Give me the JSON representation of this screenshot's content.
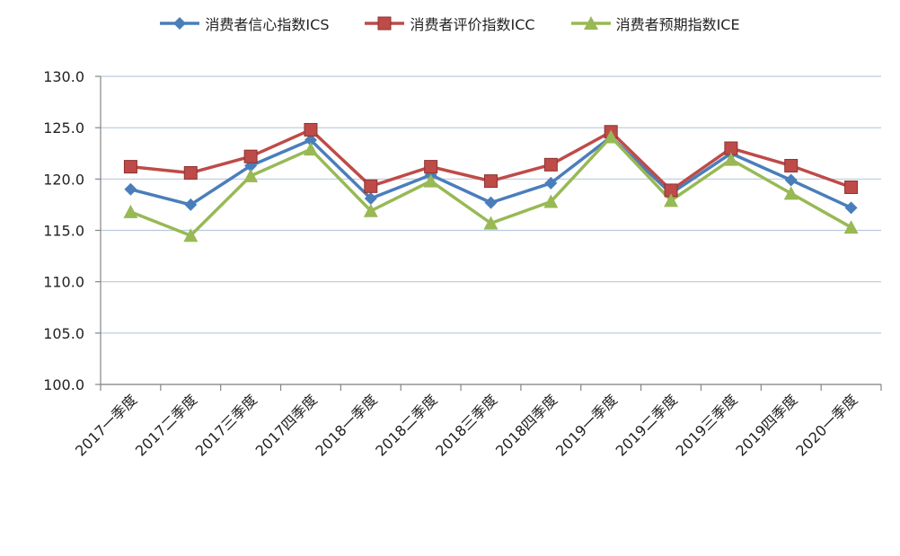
{
  "chart_data": {
    "type": "line",
    "title": "",
    "xlabel": "",
    "ylabel": "",
    "ylim": [
      100,
      130
    ],
    "y_ticks": [
      "100.0",
      "105.0",
      "110.0",
      "115.0",
      "120.0",
      "125.0",
      "130.0"
    ],
    "grid": true,
    "legend_position": "top",
    "categories": [
      "2017一季度",
      "2017二季度",
      "2017三季度",
      "2017四季度",
      "2018一季度",
      "2018二季度",
      "2018三季度",
      "2018四季度",
      "2019一季度",
      "2019二季度",
      "2019三季度",
      "2019四季度",
      "2020一季度"
    ],
    "series": [
      {
        "name": "消费者信心指数ICS",
        "color": "#4a7ebb",
        "marker": "diamond",
        "values": [
          119.0,
          117.5,
          121.3,
          123.8,
          118.1,
          120.4,
          117.7,
          119.6,
          124.1,
          118.6,
          122.5,
          119.9,
          117.2
        ]
      },
      {
        "name": "消费者评价指数ICC",
        "color": "#be4b48",
        "marker": "square",
        "values": [
          121.2,
          120.6,
          122.2,
          124.8,
          119.3,
          121.2,
          119.8,
          121.4,
          124.6,
          118.9,
          123.0,
          121.3,
          119.2
        ]
      },
      {
        "name": "消费者预期指数ICE",
        "color": "#98b954",
        "marker": "triangle",
        "values": [
          116.8,
          114.5,
          120.3,
          122.9,
          116.9,
          119.8,
          115.7,
          117.8,
          124.1,
          117.9,
          121.9,
          118.6,
          115.3
        ]
      }
    ]
  }
}
